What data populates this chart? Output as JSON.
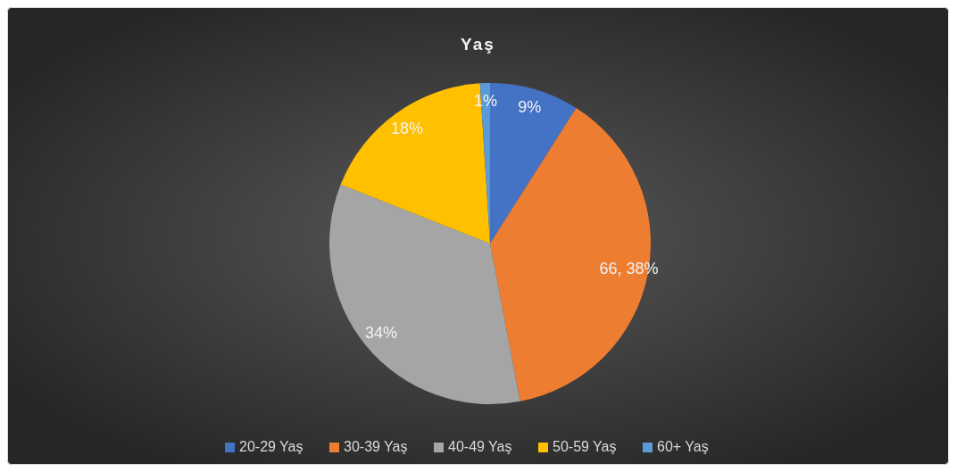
{
  "chart_data": {
    "type": "pie",
    "title": "Yaş",
    "categories": [
      "20-29 Yaş",
      "30-39 Yaş",
      "40-49 Yaş",
      "50-59 Yaş",
      "60+ Yaş"
    ],
    "values": [
      9,
      38,
      34,
      18,
      1
    ],
    "value_labels": [
      "9%",
      "66, 38%",
      "34%",
      "18%",
      "1%"
    ],
    "colors": [
      "#4472c4",
      "#ed7d31",
      "#a5a5a5",
      "#ffc000",
      "#5b9bd5"
    ],
    "legend": "bottom"
  }
}
